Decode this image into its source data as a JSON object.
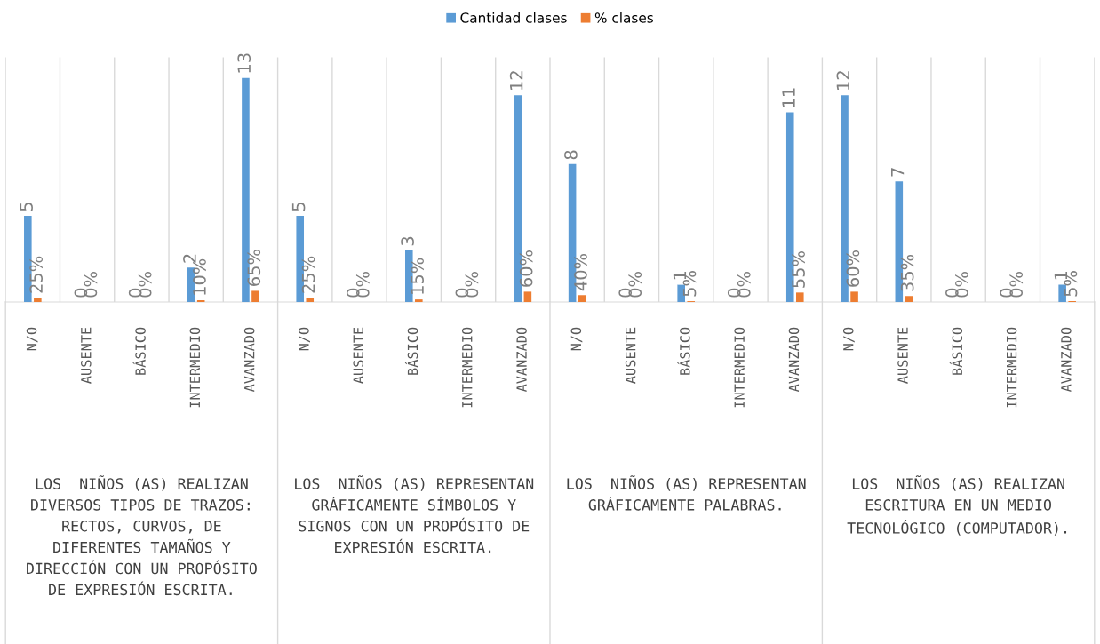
{
  "chart_data": {
    "type": "bar",
    "categories": [
      "N/O",
      "AUSENTE",
      "BÁSICO",
      "INTERMEDIO",
      "AVANZADO",
      "N/O",
      "AUSENTE",
      "BÁSICO",
      "INTERMEDIO",
      "AVANZADO",
      "N/O",
      "AUSENTE",
      "BÁSICO",
      "INTERMEDIO",
      "AVANZADO",
      "N/O",
      "AUSENTE",
      "BÁSICO",
      "INTERMEDIO",
      "AVANZADO"
    ],
    "series": [
      {
        "name": "Cantidad clases",
        "color": "#5b9bd5",
        "values": [
          5,
          0,
          0,
          2,
          13,
          5,
          0,
          3,
          0,
          12,
          8,
          0,
          1,
          0,
          11,
          12,
          7,
          0,
          0,
          1
        ]
      },
      {
        "name": "% clases",
        "color": "#ed7d31",
        "values": [
          0.25,
          0,
          0,
          0.1,
          0.65,
          0.25,
          0,
          0.15,
          0,
          0.6,
          0.4,
          0,
          0.05,
          0,
          0.55,
          0.6,
          0.35,
          0,
          0,
          0.05
        ],
        "value_labels": [
          "25%",
          "0%",
          "0%",
          "10%",
          "65%",
          "25%",
          "0%",
          "15%",
          "0%",
          "60%",
          "40%",
          "0%",
          "5%",
          "0%",
          "55%",
          "60%",
          "35%",
          "0%",
          "0%",
          "5%"
        ]
      }
    ],
    "annotations": [
      "LOS  NIÑOS (AS) REALIZAN DIVERSOS TIPOS DE TRAZOS: RECTOS, CURVOS, DE DIFERENTES TAMAÑOS Y DIRECCIÓN CON UN PROPÓSITO DE EXPRESIÓN ESCRITA.",
      "LOS  NIÑOS (AS) REPRESENTAN GRÁFICAMENTE SÍMBOLOS Y SIGNOS CON UN PROPÓSITO DE EXPRESIÓN ESCRITA.",
      "LOS  NIÑOS (AS) REPRESENTAN GRÁFICAMENTE PALABRAS.",
      "LOS  NIÑOS (AS) REALIZAN ESCRITURA EN UN MEDIO TECNOLÓGICO (COMPUTADOR)."
    ],
    "ylim": [
      0,
      14.2
    ],
    "tick_labels": "x",
    "data_labels": true,
    "grid": "x",
    "legend": "top"
  }
}
